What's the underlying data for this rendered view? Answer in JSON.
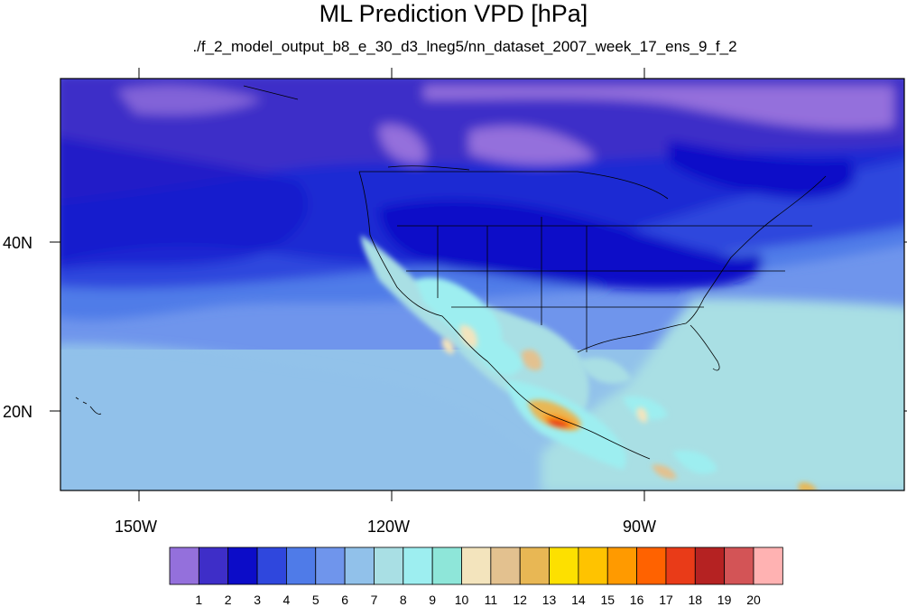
{
  "figure": {
    "title": "ML Prediction VPD [hPa]",
    "subtitle": "./f_2_model_output_b8_e_30_d3_lneg5/nn_dataset_2007_week_17_ens_9_f_2"
  },
  "map": {
    "projection": "cylindrical equidistant",
    "region": "North America, eastern Pacific, Gulf of Mexico",
    "variable": "VPD",
    "units": "hPa",
    "lat_labels": [
      "40N",
      "20N"
    ],
    "lon_labels": [
      "150W",
      "120W",
      "90W"
    ],
    "colors": {
      "ocean_north": "#3e2ec8",
      "ocean_mid": "#6c8fe8",
      "ocean_south": "#92c2ea",
      "land_canada": "#1414c8",
      "land_east_us": "#2a3fd9",
      "land_west_us": "#a7dfe4",
      "hot_spot": "#e52b12",
      "border_lines": "#000000"
    }
  },
  "colorbar": {
    "labels": [
      "1",
      "2",
      "3",
      "4",
      "5",
      "6",
      "7",
      "8",
      "9",
      "10",
      "11",
      "12",
      "13",
      "14",
      "15",
      "16",
      "17",
      "18",
      "19",
      "20"
    ],
    "colors": [
      "#9470dc",
      "#3e2ec8",
      "#0c0cc8",
      "#2f47dd",
      "#4f7be8",
      "#6f95ec",
      "#91c1ea",
      "#a9dfe4",
      "#9deef0",
      "#8ee6d9",
      "#f3e4bd",
      "#e3c18f",
      "#e8b754",
      "#fde000",
      "#ffc300",
      "#ff9a00",
      "#ff6200",
      "#e93b18",
      "#b52222",
      "#d35456",
      "#ffb2b2"
    ]
  }
}
